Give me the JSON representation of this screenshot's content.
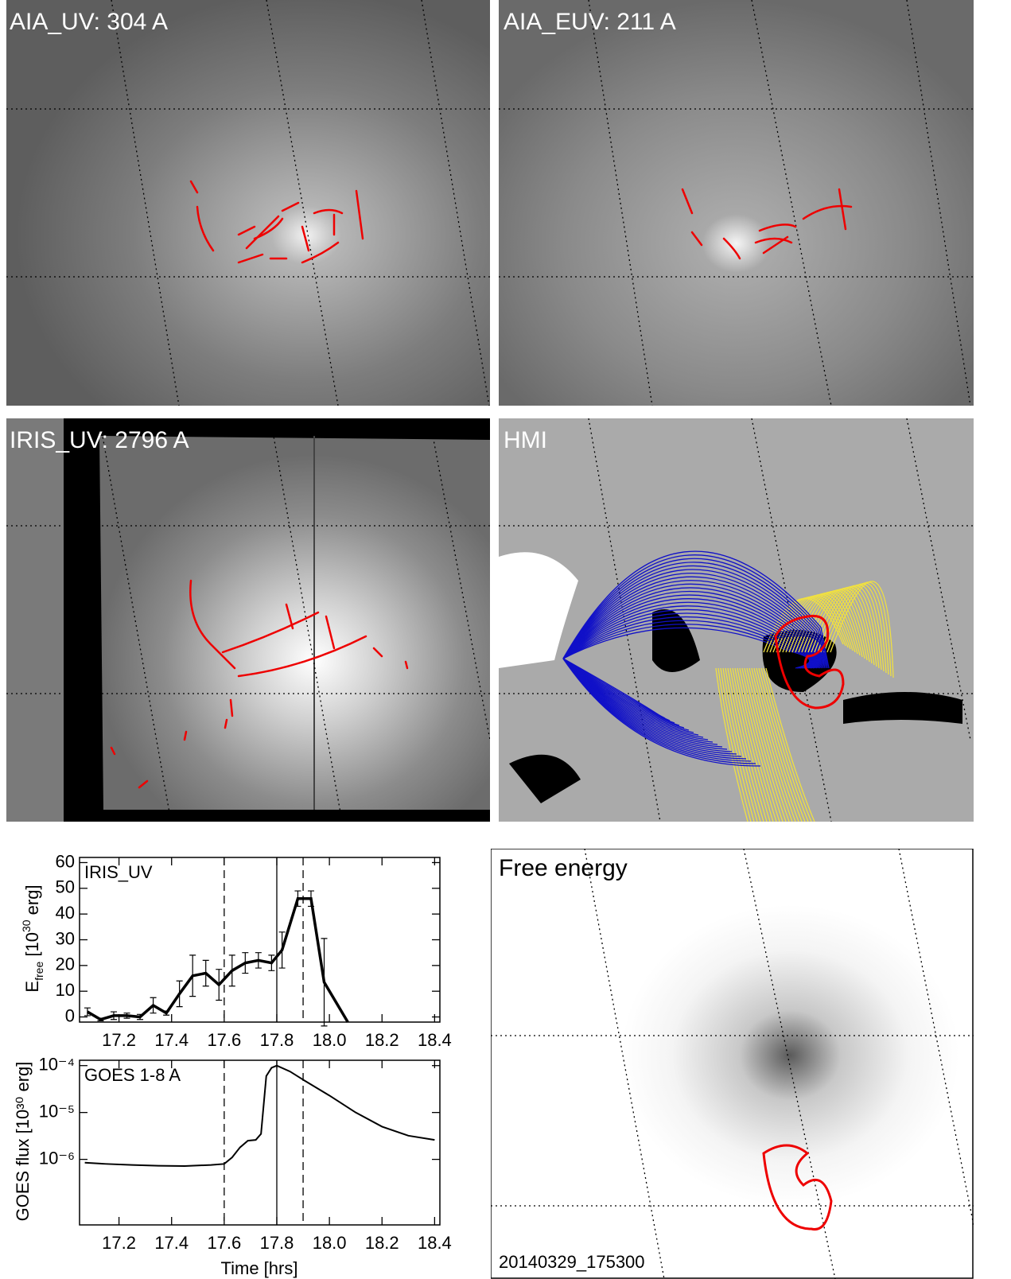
{
  "panels": [
    {
      "label": "AIA_UV: 304 A"
    },
    {
      "label": "AIA_EUV: 211 A"
    },
    {
      "label": "IRIS_UV: 2796 A"
    },
    {
      "label": "HMI"
    },
    {
      "label": "Free energy",
      "timestamp": "20140329_175300"
    }
  ],
  "chart_data": [
    {
      "type": "line",
      "annotation": "IRIS_UV",
      "ylabel_parts": [
        "E",
        "free",
        " [10",
        "30",
        " erg]"
      ],
      "x": [
        17.08,
        17.13,
        17.18,
        17.23,
        17.28,
        17.33,
        17.38,
        17.43,
        17.48,
        17.53,
        17.58,
        17.63,
        17.68,
        17.73,
        17.78,
        17.82,
        17.88,
        17.93,
        17.98,
        18.07
      ],
      "values": [
        2,
        -1,
        0.5,
        0.5,
        0,
        4.5,
        1.5,
        9,
        16,
        17,
        12.5,
        18,
        21,
        22,
        21,
        26,
        46,
        46,
        13.5,
        -2
      ],
      "errors": [
        1.5,
        0.5,
        1.5,
        1,
        1,
        3,
        0.8,
        5,
        8,
        5,
        6,
        6,
        4,
        3,
        3,
        7,
        3,
        3,
        17,
        null
      ],
      "color": "#000000",
      "xlim": [
        17.05,
        18.42
      ],
      "ylim": [
        -2,
        62
      ],
      "xticks": [
        17.2,
        17.4,
        17.6,
        17.8,
        {
          "value": 18,
          "label": "18.0"
        },
        18.2,
        18.4
      ],
      "yticks": [
        0,
        10,
        20,
        30,
        40,
        50,
        60
      ],
      "vlines": [
        {
          "x": 17.6,
          "style": "dashed"
        },
        {
          "x": 17.8,
          "style": "solid"
        },
        {
          "x": 17.9,
          "style": "dashed"
        }
      ]
    },
    {
      "type": "line",
      "annotation": "GOES 1-8 A",
      "ylabel": "GOES flux [10³⁰ erg]",
      "xlabel": "Time [hrs]",
      "log_y": true,
      "x": [
        17.07,
        17.15,
        17.25,
        17.35,
        17.45,
        17.55,
        17.6,
        17.63,
        17.66,
        17.69,
        17.72,
        17.74,
        17.76,
        17.78,
        17.8,
        17.85,
        17.9,
        18.0,
        18.1,
        18.2,
        18.3,
        18.4
      ],
      "values": [
        8.5e-07,
        8e-07,
        7.6e-07,
        7.3e-07,
        7.2e-07,
        7.6e-07,
        8e-07,
        1.1e-06,
        1.8e-06,
        2.5e-06,
        2.6e-06,
        3.5e-06,
        6e-05,
        9e-05,
        0.0001,
        7.5e-05,
        5e-05,
        2.3e-05,
        1e-05,
        5e-06,
        3.2e-06,
        2.6e-06
      ],
      "color": "#000000",
      "xlim": [
        17.05,
        18.42
      ],
      "ylim": [
        4e-08,
        0.00013
      ],
      "xticks": [
        17.2,
        17.4,
        17.6,
        17.8,
        {
          "value": 18,
          "label": "18.0"
        },
        18.2,
        18.4
      ],
      "yticks": [
        {
          "value": 1e-06,
          "label": "10⁻⁶"
        },
        {
          "value": 1e-05,
          "label": "10⁻⁵"
        },
        {
          "value": 0.0001,
          "label": "10⁻⁴"
        }
      ],
      "vlines": [
        {
          "x": 17.6,
          "style": "dashed"
        },
        {
          "x": 17.8,
          "style": "solid"
        },
        {
          "x": 17.9,
          "style": "dashed"
        }
      ]
    }
  ]
}
